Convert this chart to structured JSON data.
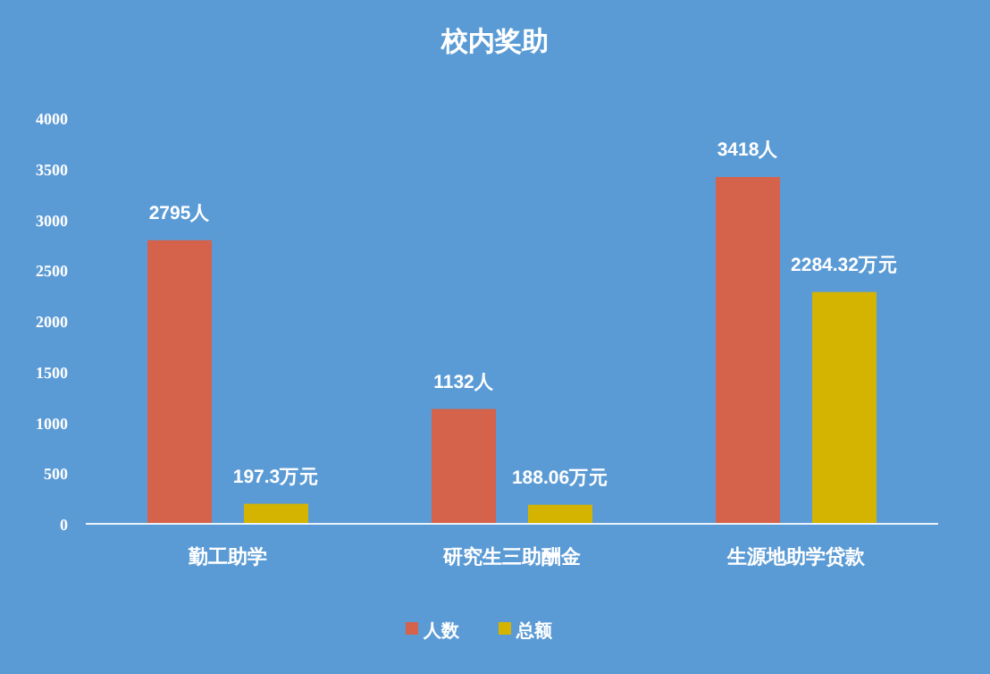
{
  "chart_data": {
    "type": "bar",
    "title": "校内奖助",
    "categories": [
      "勤工助学",
      "研究生三助酬金",
      "生源地助学贷款"
    ],
    "series": [
      {
        "name": "人数",
        "color": "#d5624a",
        "values": [
          2795,
          1132,
          3418
        ],
        "value_labels": [
          "2795人",
          "1132人",
          "3418人"
        ]
      },
      {
        "name": "总额",
        "color": "#d4b400",
        "values": [
          197.3,
          188.06,
          2284.32
        ],
        "value_labels": [
          "197.3万元",
          "188.06万元",
          "2284.32万元"
        ]
      }
    ],
    "ylim": [
      0,
      4000
    ],
    "yticks": [
      0,
      500,
      1000,
      1500,
      2000,
      2500,
      3000,
      3500,
      4000
    ],
    "grid": false,
    "legend": "bottom"
  }
}
